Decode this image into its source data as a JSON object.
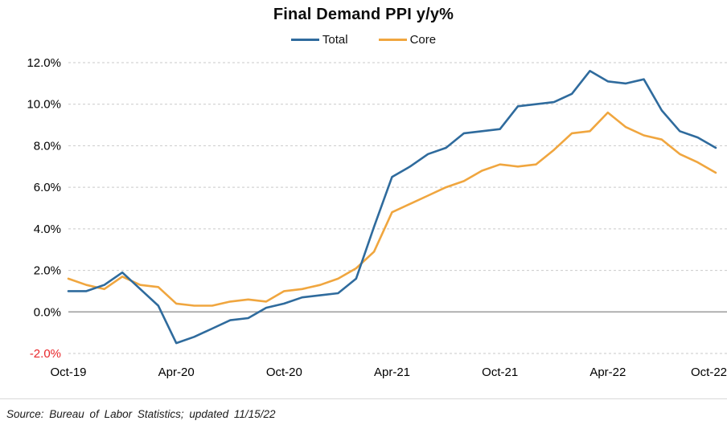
{
  "chart": {
    "title": "Final Demand PPI y/y%",
    "source_note": "Source: Bureau of Labor Statistics; updated 11/15/22",
    "legend": [
      {
        "label": "Total",
        "color": "#2F6B9D"
      },
      {
        "label": "Core",
        "color": "#F0A63F"
      }
    ]
  },
  "chart_data": {
    "type": "line",
    "title": "Final Demand PPI y/y%",
    "legend_position": "top",
    "grid": "horizontal-dashed",
    "grid_color": "#c9c9c9",
    "zero_line_color": "#a6a6a6",
    "ylim": [
      -2,
      12
    ],
    "x": [
      "Oct-19",
      "Nov-19",
      "Dec-19",
      "Jan-20",
      "Feb-20",
      "Mar-20",
      "Apr-20",
      "May-20",
      "Jun-20",
      "Jul-20",
      "Aug-20",
      "Sep-20",
      "Oct-20",
      "Nov-20",
      "Dec-20",
      "Jan-21",
      "Feb-21",
      "Mar-21",
      "Apr-21",
      "May-21",
      "Jun-21",
      "Jul-21",
      "Aug-21",
      "Sep-21",
      "Oct-21",
      "Nov-21",
      "Dec-21",
      "Jan-22",
      "Feb-22",
      "Mar-22",
      "Apr-22",
      "May-22",
      "Jun-22",
      "Jul-22",
      "Aug-22",
      "Sep-22",
      "Oct-22"
    ],
    "x_tick_labels": [
      "Oct-19",
      "Apr-20",
      "Oct-20",
      "Apr-21",
      "Oct-21",
      "Apr-22",
      "Oct-22"
    ],
    "y_ticks": [
      {
        "value": 12,
        "label": "12.0%",
        "color": "#000000"
      },
      {
        "value": 10,
        "label": "10.0%",
        "color": "#000000"
      },
      {
        "value": 8,
        "label": "8.0%",
        "color": "#000000"
      },
      {
        "value": 6,
        "label": "6.0%",
        "color": "#000000"
      },
      {
        "value": 4,
        "label": "4.0%",
        "color": "#000000"
      },
      {
        "value": 2,
        "label": "2.0%",
        "color": "#000000"
      },
      {
        "value": 0,
        "label": "0.0%",
        "color": "#000000"
      },
      {
        "value": -2,
        "label": "-2.0%",
        "color": "#e8262a"
      }
    ],
    "series": [
      {
        "name": "Total",
        "color": "#2F6B9D",
        "values": [
          1.0,
          1.0,
          1.3,
          1.9,
          1.1,
          0.3,
          -1.5,
          -1.2,
          -0.8,
          -0.4,
          -0.3,
          0.2,
          0.4,
          0.7,
          0.8,
          0.9,
          1.6,
          4.1,
          6.5,
          7.0,
          7.6,
          7.9,
          8.6,
          8.7,
          8.8,
          9.9,
          10.0,
          10.1,
          10.5,
          11.6,
          11.1,
          11.0,
          11.2,
          9.7,
          8.7,
          8.4,
          7.9
        ]
      },
      {
        "name": "Core",
        "color": "#F0A63F",
        "values": [
          1.6,
          1.3,
          1.1,
          1.7,
          1.3,
          1.2,
          0.4,
          0.3,
          0.3,
          0.5,
          0.6,
          0.5,
          1.0,
          1.1,
          1.3,
          1.6,
          2.1,
          2.9,
          4.8,
          5.2,
          5.6,
          6.0,
          6.3,
          6.8,
          7.1,
          7.0,
          7.1,
          7.8,
          8.6,
          8.7,
          9.6,
          8.9,
          8.5,
          8.3,
          7.6,
          7.2,
          6.7
        ]
      }
    ]
  }
}
